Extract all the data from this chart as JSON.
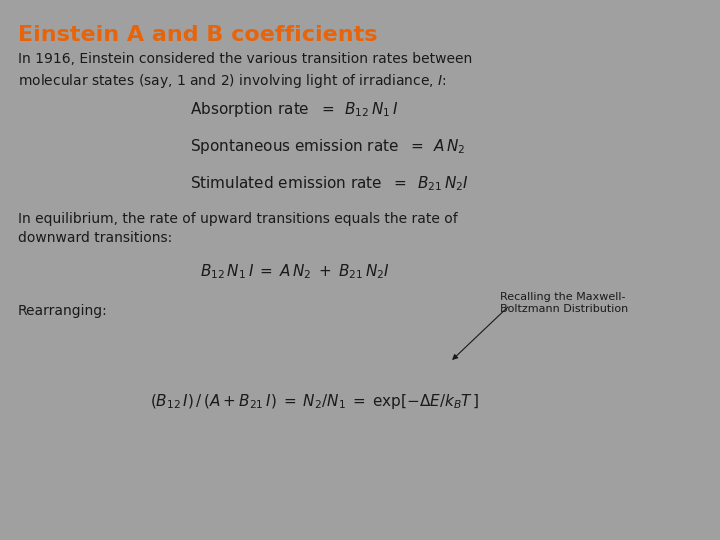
{
  "background_color": "#a0a0a0",
  "title": "Einstein A and B coefficients",
  "title_color": "#e8640a",
  "title_fontsize": 16,
  "body_color": "#1a1a1a",
  "body_fontsize": 10,
  "math_fontsize": 11,
  "small_fontsize": 8,
  "intro_text": "In 1916, Einstein considered the various transition rates between\nmolecular states (say, 1 and 2) involving light of irradiance, $I$:",
  "absorption": "Absorption rate  $=$ $\\,B_{12}\\,N_1\\,I$",
  "spontaneous": "Spontaneous emission rate  $=$ $\\,A\\,N_2$",
  "stimulated": "Stimulated emission rate  $=$ $\\,B_{21}\\,N_2 I$",
  "equilibrium_text": "In equilibrium, the rate of upward transitions equals the rate of\ndownward transitions:",
  "equilibrium_eq": "$B_{12}\\,N_1\\,I \\;=\\; A\\,N_2 \\;+\\; B_{21}\\,N_2 I$",
  "rearranging_label": "Rearranging:",
  "maxwell_note": "Recalling the Maxwell-\nBoltzmann Distribution",
  "final_eq": "$(B_{12}\\,I)\\,/\\,(A + B_{21}\\,I) \\;=\\; N_2/N_1 \\;=\\; \\exp[-\\Delta E/k_B T\\,]$"
}
